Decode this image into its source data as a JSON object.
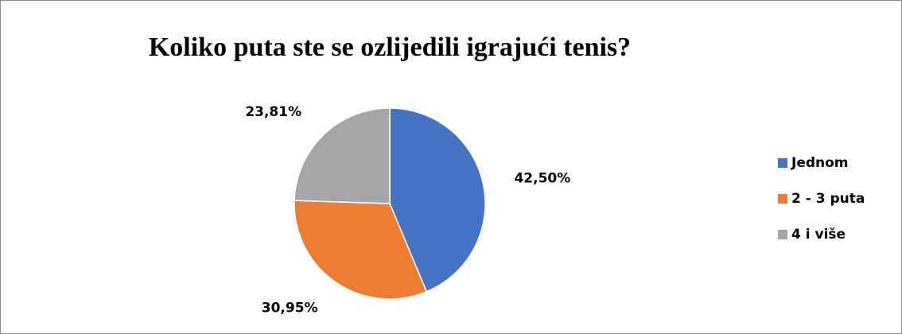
{
  "chart_data": {
    "type": "pie",
    "title": "Koliko puta ste se ozlijedili igrajući tenis?",
    "categories": [
      "Jednom",
      "2 - 3 puta",
      "4 i više"
    ],
    "values": [
      42.5,
      30.95,
      23.81
    ],
    "value_labels": [
      "42,50%",
      "30,95%",
      "23,81%"
    ],
    "colors": [
      "#4472c4",
      "#ed7d31",
      "#a5a5a5"
    ],
    "legend": "right"
  }
}
